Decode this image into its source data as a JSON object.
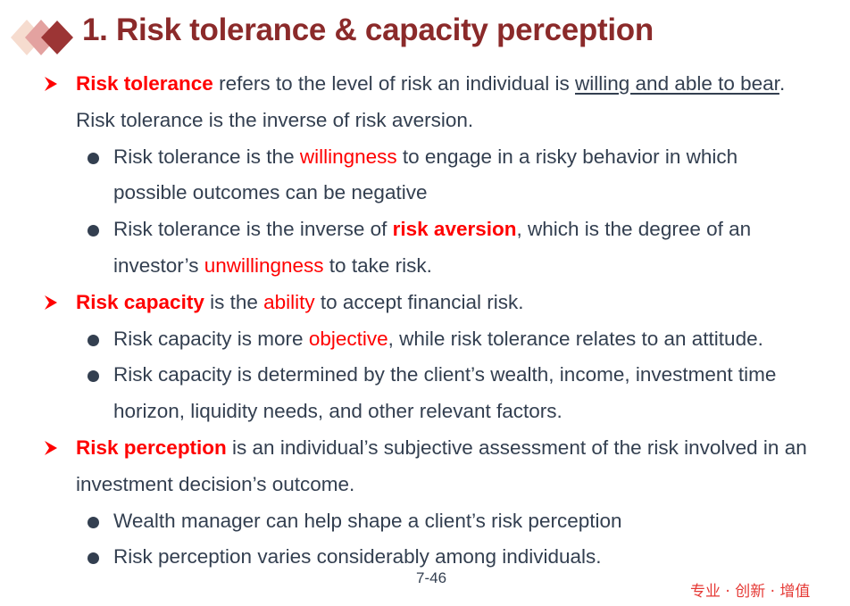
{
  "slide": {
    "title": "1. Risk tolerance & capacity perception",
    "page_number": "7-46",
    "slogan": "专业 · 创新 · 增值"
  },
  "points": {
    "tolerance": {
      "term": "Risk tolerance",
      "text_a": " refers to the level of risk an individual is ",
      "underlined": "willing and able to bear",
      "text_b": ".",
      "line2": "Risk tolerance is the inverse of risk aversion.",
      "sub1": {
        "a": "Risk tolerance is the ",
        "highlight": "willingness",
        "b": " to engage in a risky behavior in which",
        "line2": "possible outcomes can be negative"
      },
      "sub2": {
        "a": "Risk tolerance is the inverse of ",
        "highlight": "risk aversion",
        "b": ", which is the degree of an",
        "line2_a": "investor’s ",
        "line2_highlight": "unwillingness",
        "line2_b": " to take risk."
      }
    },
    "capacity": {
      "term": "Risk capacity",
      "text_a": " is the ",
      "highlight": "ability",
      "text_b": " to accept financial risk.",
      "sub1": {
        "a": "Risk capacity is more ",
        "highlight": "objective",
        "b": ", while risk tolerance relates to an attitude."
      },
      "sub2": {
        "line1": "Risk capacity is determined by the client’s wealth, income, investment time",
        "line2": "horizon, liquidity needs, and other relevant factors."
      }
    },
    "perception": {
      "term": "Risk perception",
      "text_a": " is an individual’s subjective assessment of the risk involved in an",
      "line2": "investment decision’s outcome.",
      "sub1": "Wealth manager can help shape a client’s risk perception",
      "sub2": "Risk perception varies considerably among individuals."
    }
  },
  "colors": {
    "title": "#8b2a2a",
    "highlight": "#ff0000",
    "body": "#333f50"
  }
}
